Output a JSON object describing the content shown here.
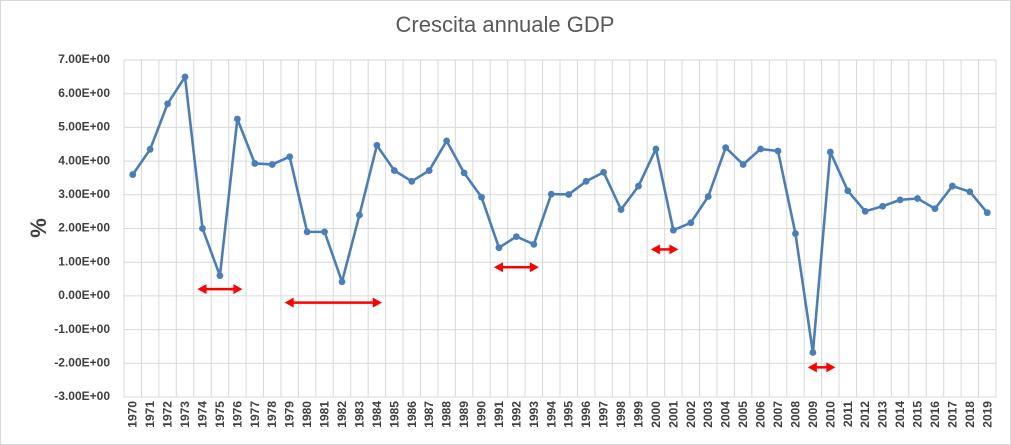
{
  "chart_data": {
    "type": "line",
    "title": "Crescita annuale GDP",
    "xlabel": "",
    "ylabel": "%",
    "ylim": [
      -3,
      7
    ],
    "y_tick_step": 1,
    "y_tick_labels": [
      "-3.00E+00",
      "-2.00E+00",
      "-1.00E+00",
      "0.00E+00",
      "1.00E+00",
      "2.00E+00",
      "3.00E+00",
      "4.00E+00",
      "5.00E+00",
      "6.00E+00",
      "7.00E+00"
    ],
    "grid": true,
    "legend": "none",
    "categories": [
      "1970",
      "1971",
      "1972",
      "1973",
      "1974",
      "1975",
      "1976",
      "1977",
      "1978",
      "1979",
      "1980",
      "1981",
      "1982",
      "1983",
      "1984",
      "1985",
      "1986",
      "1987",
      "1988",
      "1989",
      "1990",
      "1991",
      "1992",
      "1993",
      "1994",
      "1995",
      "1996",
      "1997",
      "1998",
      "1999",
      "2000",
      "2001",
      "2002",
      "2003",
      "2004",
      "2005",
      "2006",
      "2007",
      "2008",
      "2009",
      "2010",
      "2011",
      "2012",
      "2013",
      "2014",
      "2015",
      "2016",
      "2017",
      "2018",
      "2019"
    ],
    "series": [
      {
        "values": [
          3.6,
          4.35,
          5.7,
          6.5,
          2.0,
          0.6,
          5.25,
          3.93,
          3.9,
          4.13,
          1.9,
          1.9,
          0.42,
          2.4,
          4.47,
          3.72,
          3.4,
          3.72,
          4.6,
          3.65,
          2.93,
          1.43,
          1.76,
          1.53,
          3.02,
          3.01,
          3.4,
          3.67,
          2.56,
          3.26,
          4.36,
          1.95,
          2.17,
          2.95,
          4.4,
          3.9,
          4.36,
          4.3,
          1.85,
          -1.68,
          4.27,
          3.12,
          2.51,
          2.66,
          2.85,
          2.89,
          2.59,
          3.26,
          3.09,
          2.47
        ],
        "color": "#4a7ebb"
      }
    ],
    "annotations": [
      {
        "type": "double-arrow",
        "from": "1974",
        "to": "1976",
        "y": 0.2,
        "color": "#ff0000"
      },
      {
        "type": "double-arrow",
        "from": "1979",
        "to": "1984",
        "y": -0.2,
        "color": "#ff0000"
      },
      {
        "type": "double-arrow",
        "from": "1991",
        "to": "1993",
        "y": 0.85,
        "color": "#ff0000"
      },
      {
        "type": "double-arrow",
        "from": "2000",
        "to": "2001",
        "y": 1.38,
        "color": "#ff0000"
      },
      {
        "type": "double-arrow",
        "from": "2009",
        "to": "2010",
        "y": -2.12,
        "color": "#ff0000"
      }
    ]
  }
}
